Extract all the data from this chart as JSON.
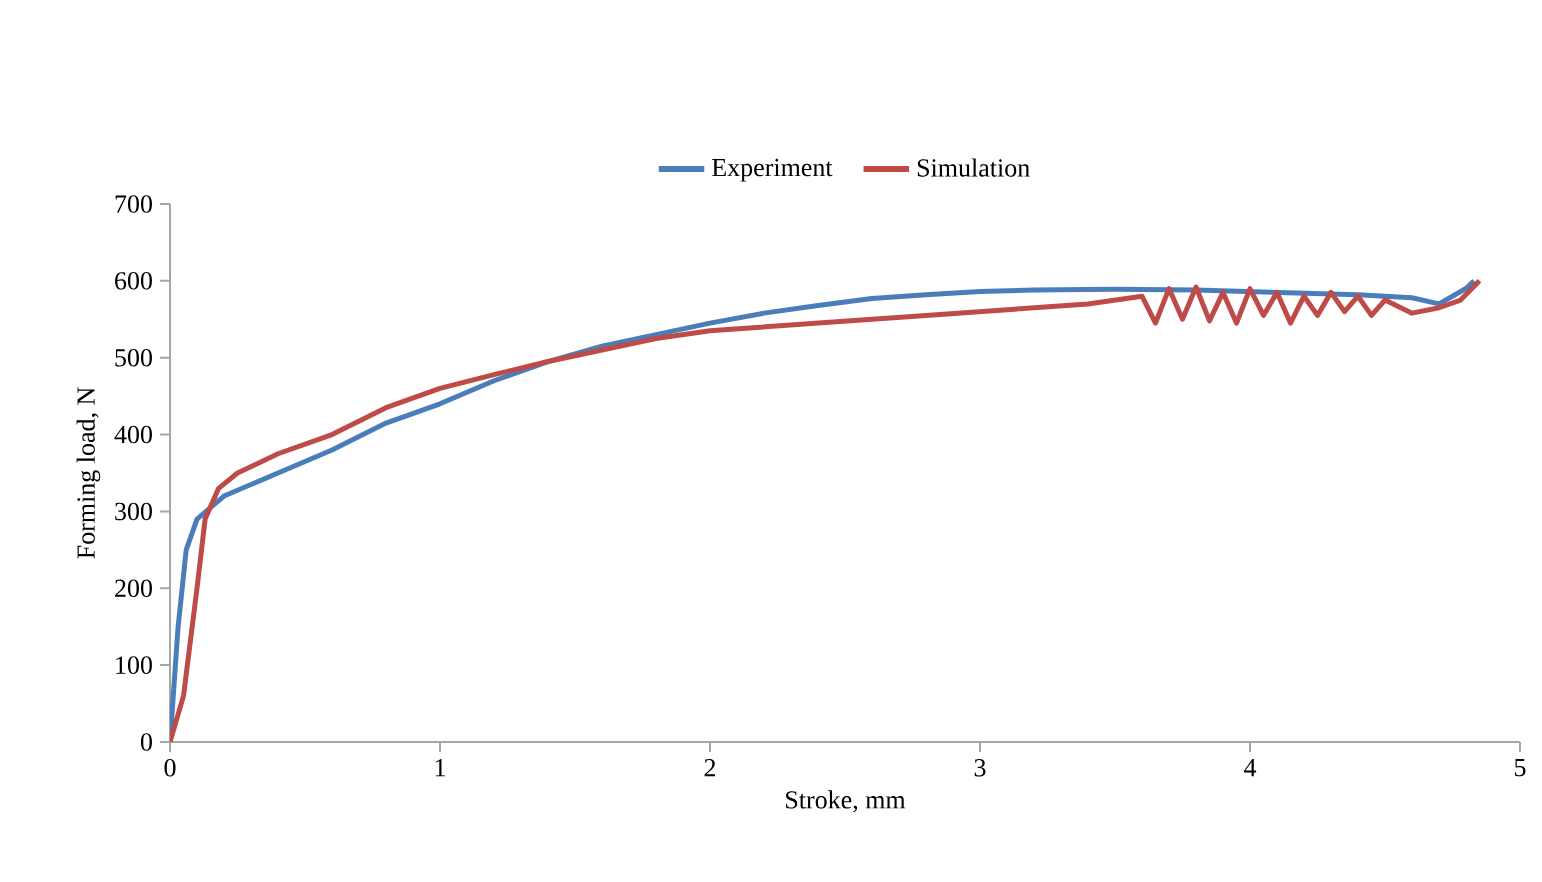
{
  "chart_data": {
    "type": "line",
    "xlabel": "Stroke, mm",
    "ylabel": "Forming load, N",
    "xlim": [
      0,
      5
    ],
    "xticks": [
      0,
      1,
      2,
      3,
      4,
      5
    ],
    "ylim": [
      0,
      700
    ],
    "yticks": [
      0,
      100,
      200,
      300,
      400,
      500,
      600,
      700
    ],
    "legend": "top",
    "grid": false,
    "marker": "none",
    "line_style": "solid",
    "series": [
      {
        "name": "Experiment",
        "color": "#4a7ebb",
        "x": [
          0,
          0.03,
          0.06,
          0.1,
          0.2,
          0.4,
          0.6,
          0.8,
          1.0,
          1.2,
          1.4,
          1.6,
          1.8,
          2.0,
          2.2,
          2.4,
          2.6,
          2.8,
          3.0,
          3.2,
          3.5,
          3.8,
          4.0,
          4.2,
          4.4,
          4.6,
          4.7,
          4.8,
          4.83
        ],
        "values": [
          0,
          150,
          250,
          290,
          320,
          350,
          380,
          415,
          440,
          470,
          495,
          515,
          530,
          545,
          558,
          568,
          577,
          582,
          586,
          588,
          589,
          588,
          586,
          584,
          582,
          578,
          570,
          590,
          600
        ]
      },
      {
        "name": "Simulation",
        "color": "#be4b48",
        "x": [
          0,
          0.05,
          0.1,
          0.13,
          0.18,
          0.25,
          0.4,
          0.6,
          0.8,
          1.0,
          1.2,
          1.4,
          1.6,
          1.8,
          2.0,
          2.2,
          2.4,
          2.6,
          2.8,
          3.0,
          3.2,
          3.4,
          3.6,
          3.65,
          3.7,
          3.75,
          3.8,
          3.85,
          3.9,
          3.95,
          4.0,
          4.05,
          4.1,
          4.15,
          4.2,
          4.25,
          4.3,
          4.35,
          4.4,
          4.45,
          4.5,
          4.6,
          4.7,
          4.78,
          4.85
        ],
        "values": [
          0,
          60,
          200,
          290,
          330,
          350,
          375,
          400,
          435,
          460,
          478,
          495,
          510,
          525,
          535,
          540,
          545,
          550,
          555,
          560,
          565,
          570,
          580,
          545,
          590,
          550,
          592,
          548,
          585,
          545,
          590,
          555,
          585,
          545,
          580,
          555,
          585,
          560,
          580,
          555,
          575,
          558,
          565,
          575,
          600
        ]
      }
    ]
  }
}
